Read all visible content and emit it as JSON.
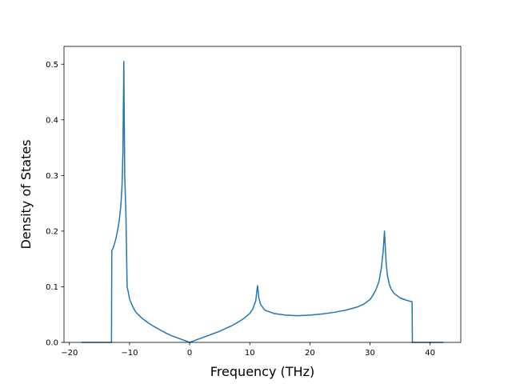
{
  "chart_data": {
    "type": "line",
    "title": "",
    "xlabel": "Frequency (THz)",
    "ylabel": "Density of States",
    "xlim": [
      -20.9,
      45.1
    ],
    "ylim": [
      0,
      0.532
    ],
    "xticks": [
      -20,
      -10,
      0,
      10,
      20,
      30,
      40
    ],
    "yticks": [
      0.0,
      0.1,
      0.2,
      0.3,
      0.4,
      0.5
    ],
    "ytick_labels": [
      "0.0",
      "0.1",
      "0.2",
      "0.3",
      "0.4",
      "0.5"
    ],
    "grid": false,
    "legend": "none",
    "series": [
      {
        "color": "#1f77b4",
        "x": [
          -18.0,
          -13.0,
          -12.95,
          -12.7,
          -12.3,
          -12.0,
          -11.7,
          -11.45,
          -11.25,
          -11.1,
          -10.95,
          -10.8,
          -10.6,
          -10.4,
          -10.2,
          -10.0,
          -9.5,
          -9.0,
          -8.0,
          -7.0,
          -6.0,
          -5.0,
          -4.0,
          -3.0,
          -2.0,
          -1.0,
          0.0,
          1.0,
          2.0,
          3.0,
          4.0,
          5.0,
          6.0,
          7.0,
          8.0,
          9.0,
          10.0,
          10.5,
          11.0,
          11.2,
          11.3,
          11.5,
          11.8,
          12.5,
          14.0,
          16.0,
          18.0,
          20.0,
          22.0,
          24.0,
          26.0,
          28.0,
          29.0,
          30.0,
          30.5,
          31.0,
          31.5,
          31.9,
          32.2,
          32.4,
          32.55,
          32.7,
          32.9,
          33.2,
          33.5,
          34.0,
          35.0,
          36.0,
          37.0,
          37.05,
          37.2,
          42.2
        ],
        "y": [
          0.0,
          0.0,
          0.165,
          0.17,
          0.185,
          0.2,
          0.22,
          0.245,
          0.28,
          0.34,
          0.505,
          0.3,
          0.23,
          0.1,
          0.09,
          0.078,
          0.065,
          0.055,
          0.044,
          0.036,
          0.029,
          0.023,
          0.017,
          0.012,
          0.008,
          0.004,
          0.0,
          0.004,
          0.008,
          0.012,
          0.016,
          0.02,
          0.025,
          0.03,
          0.036,
          0.043,
          0.052,
          0.06,
          0.075,
          0.095,
          0.102,
          0.08,
          0.068,
          0.058,
          0.052,
          0.049,
          0.048,
          0.049,
          0.051,
          0.054,
          0.058,
          0.064,
          0.069,
          0.077,
          0.085,
          0.095,
          0.11,
          0.135,
          0.165,
          0.2,
          0.17,
          0.14,
          0.12,
          0.105,
          0.096,
          0.088,
          0.08,
          0.076,
          0.073,
          0.0,
          0.0,
          0.0
        ]
      }
    ]
  }
}
